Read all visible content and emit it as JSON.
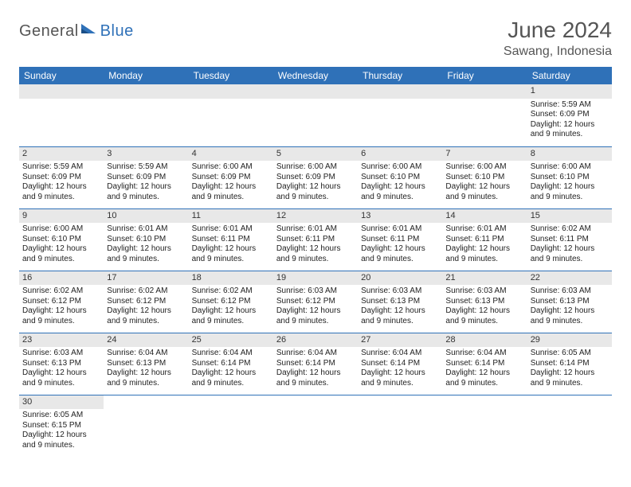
{
  "logo": {
    "general": "General",
    "blue": "Blue"
  },
  "title": "June 2024",
  "location": "Sawang, Indonesia",
  "colors": {
    "header_bg": "#2f71b8",
    "header_fg": "#ffffff",
    "daynum_bg": "#e8e8e8",
    "row_divider": "#2f71b8",
    "text": "#222222",
    "title_color": "#555555"
  },
  "weekdays": [
    "Sunday",
    "Monday",
    "Tuesday",
    "Wednesday",
    "Thursday",
    "Friday",
    "Saturday"
  ],
  "weeks": [
    [
      {
        "blank": true
      },
      {
        "blank": true
      },
      {
        "blank": true
      },
      {
        "blank": true
      },
      {
        "blank": true
      },
      {
        "blank": true
      },
      {
        "day": "1",
        "sunrise": "Sunrise: 5:59 AM",
        "sunset": "Sunset: 6:09 PM",
        "daylight": "Daylight: 12 hours and 9 minutes."
      }
    ],
    [
      {
        "day": "2",
        "sunrise": "Sunrise: 5:59 AM",
        "sunset": "Sunset: 6:09 PM",
        "daylight": "Daylight: 12 hours and 9 minutes."
      },
      {
        "day": "3",
        "sunrise": "Sunrise: 5:59 AM",
        "sunset": "Sunset: 6:09 PM",
        "daylight": "Daylight: 12 hours and 9 minutes."
      },
      {
        "day": "4",
        "sunrise": "Sunrise: 6:00 AM",
        "sunset": "Sunset: 6:09 PM",
        "daylight": "Daylight: 12 hours and 9 minutes."
      },
      {
        "day": "5",
        "sunrise": "Sunrise: 6:00 AM",
        "sunset": "Sunset: 6:09 PM",
        "daylight": "Daylight: 12 hours and 9 minutes."
      },
      {
        "day": "6",
        "sunrise": "Sunrise: 6:00 AM",
        "sunset": "Sunset: 6:10 PM",
        "daylight": "Daylight: 12 hours and 9 minutes."
      },
      {
        "day": "7",
        "sunrise": "Sunrise: 6:00 AM",
        "sunset": "Sunset: 6:10 PM",
        "daylight": "Daylight: 12 hours and 9 minutes."
      },
      {
        "day": "8",
        "sunrise": "Sunrise: 6:00 AM",
        "sunset": "Sunset: 6:10 PM",
        "daylight": "Daylight: 12 hours and 9 minutes."
      }
    ],
    [
      {
        "day": "9",
        "sunrise": "Sunrise: 6:00 AM",
        "sunset": "Sunset: 6:10 PM",
        "daylight": "Daylight: 12 hours and 9 minutes."
      },
      {
        "day": "10",
        "sunrise": "Sunrise: 6:01 AM",
        "sunset": "Sunset: 6:10 PM",
        "daylight": "Daylight: 12 hours and 9 minutes."
      },
      {
        "day": "11",
        "sunrise": "Sunrise: 6:01 AM",
        "sunset": "Sunset: 6:11 PM",
        "daylight": "Daylight: 12 hours and 9 minutes."
      },
      {
        "day": "12",
        "sunrise": "Sunrise: 6:01 AM",
        "sunset": "Sunset: 6:11 PM",
        "daylight": "Daylight: 12 hours and 9 minutes."
      },
      {
        "day": "13",
        "sunrise": "Sunrise: 6:01 AM",
        "sunset": "Sunset: 6:11 PM",
        "daylight": "Daylight: 12 hours and 9 minutes."
      },
      {
        "day": "14",
        "sunrise": "Sunrise: 6:01 AM",
        "sunset": "Sunset: 6:11 PM",
        "daylight": "Daylight: 12 hours and 9 minutes."
      },
      {
        "day": "15",
        "sunrise": "Sunrise: 6:02 AM",
        "sunset": "Sunset: 6:11 PM",
        "daylight": "Daylight: 12 hours and 9 minutes."
      }
    ],
    [
      {
        "day": "16",
        "sunrise": "Sunrise: 6:02 AM",
        "sunset": "Sunset: 6:12 PM",
        "daylight": "Daylight: 12 hours and 9 minutes."
      },
      {
        "day": "17",
        "sunrise": "Sunrise: 6:02 AM",
        "sunset": "Sunset: 6:12 PM",
        "daylight": "Daylight: 12 hours and 9 minutes."
      },
      {
        "day": "18",
        "sunrise": "Sunrise: 6:02 AM",
        "sunset": "Sunset: 6:12 PM",
        "daylight": "Daylight: 12 hours and 9 minutes."
      },
      {
        "day": "19",
        "sunrise": "Sunrise: 6:03 AM",
        "sunset": "Sunset: 6:12 PM",
        "daylight": "Daylight: 12 hours and 9 minutes."
      },
      {
        "day": "20",
        "sunrise": "Sunrise: 6:03 AM",
        "sunset": "Sunset: 6:13 PM",
        "daylight": "Daylight: 12 hours and 9 minutes."
      },
      {
        "day": "21",
        "sunrise": "Sunrise: 6:03 AM",
        "sunset": "Sunset: 6:13 PM",
        "daylight": "Daylight: 12 hours and 9 minutes."
      },
      {
        "day": "22",
        "sunrise": "Sunrise: 6:03 AM",
        "sunset": "Sunset: 6:13 PM",
        "daylight": "Daylight: 12 hours and 9 minutes."
      }
    ],
    [
      {
        "day": "23",
        "sunrise": "Sunrise: 6:03 AM",
        "sunset": "Sunset: 6:13 PM",
        "daylight": "Daylight: 12 hours and 9 minutes."
      },
      {
        "day": "24",
        "sunrise": "Sunrise: 6:04 AM",
        "sunset": "Sunset: 6:13 PM",
        "daylight": "Daylight: 12 hours and 9 minutes."
      },
      {
        "day": "25",
        "sunrise": "Sunrise: 6:04 AM",
        "sunset": "Sunset: 6:14 PM",
        "daylight": "Daylight: 12 hours and 9 minutes."
      },
      {
        "day": "26",
        "sunrise": "Sunrise: 6:04 AM",
        "sunset": "Sunset: 6:14 PM",
        "daylight": "Daylight: 12 hours and 9 minutes."
      },
      {
        "day": "27",
        "sunrise": "Sunrise: 6:04 AM",
        "sunset": "Sunset: 6:14 PM",
        "daylight": "Daylight: 12 hours and 9 minutes."
      },
      {
        "day": "28",
        "sunrise": "Sunrise: 6:04 AM",
        "sunset": "Sunset: 6:14 PM",
        "daylight": "Daylight: 12 hours and 9 minutes."
      },
      {
        "day": "29",
        "sunrise": "Sunrise: 6:05 AM",
        "sunset": "Sunset: 6:14 PM",
        "daylight": "Daylight: 12 hours and 9 minutes."
      }
    ],
    [
      {
        "day": "30",
        "sunrise": "Sunrise: 6:05 AM",
        "sunset": "Sunset: 6:15 PM",
        "daylight": "Daylight: 12 hours and 9 minutes."
      },
      {
        "trailing": true
      },
      {
        "trailing": true
      },
      {
        "trailing": true
      },
      {
        "trailing": true
      },
      {
        "trailing": true
      },
      {
        "trailing": true
      }
    ]
  ]
}
